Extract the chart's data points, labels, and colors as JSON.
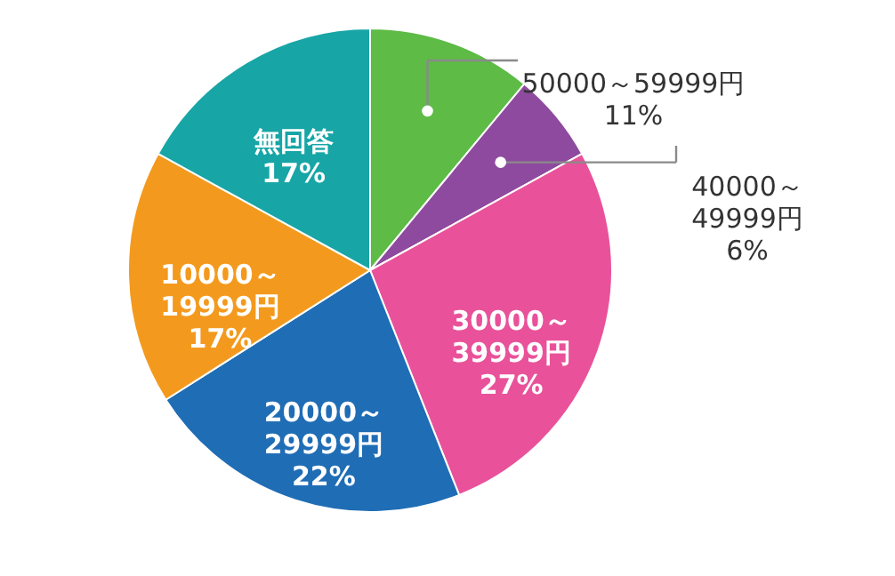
{
  "chart_data": {
    "type": "pie",
    "categories": [
      "50000～59999円",
      "40000～49999円",
      "30000～39999円",
      "20000～29999円",
      "10000～19999円",
      "無回答"
    ],
    "values": [
      11,
      6,
      27,
      22,
      17,
      17
    ],
    "colors": [
      "#5dbb46",
      "#8e4a9e",
      "#e9529a",
      "#1f6db5",
      "#f39a1e",
      "#17a5a6"
    ],
    "value_labels": [
      "11%",
      "6%",
      "27%",
      "22%",
      "17%",
      "17%"
    ]
  }
}
